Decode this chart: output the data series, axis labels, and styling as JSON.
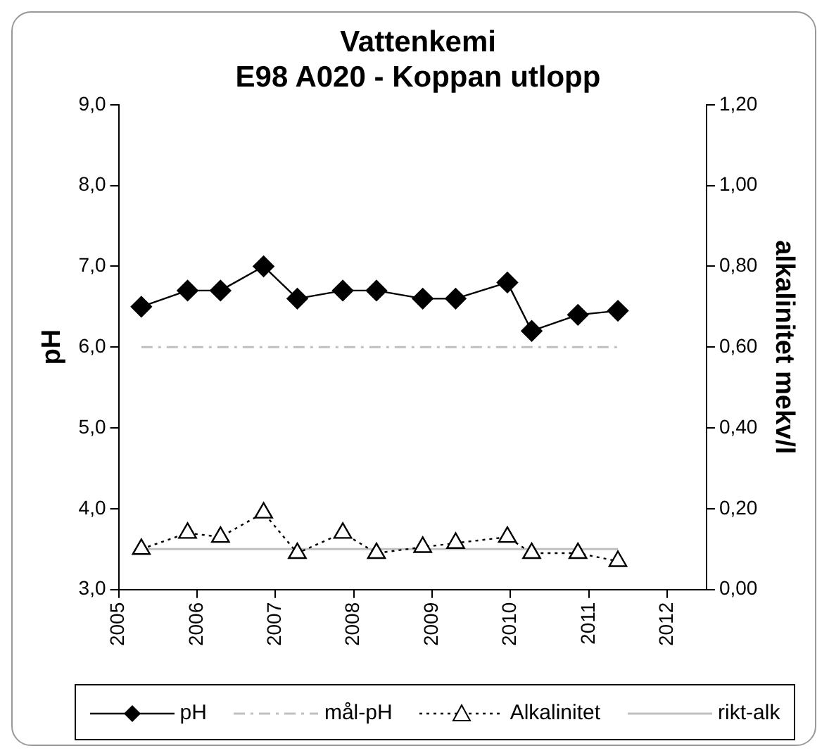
{
  "chart_data": {
    "type": "line",
    "title": "Vattenkemi",
    "subtitle": "E98 A020 - Koppan utlopp",
    "ylabel": "pH",
    "y2label": "alkalinitet mekv/l",
    "xlim": [
      2005,
      2012.5
    ],
    "xticks": [
      2005,
      2006,
      2007,
      2008,
      2009,
      2010,
      2011,
      2012
    ],
    "ylim": [
      3,
      9
    ],
    "yticks": [
      {
        "value": 3,
        "label": "3,0"
      },
      {
        "value": 4,
        "label": "4,0"
      },
      {
        "value": 5,
        "label": "5,0"
      },
      {
        "value": 6,
        "label": "6,0"
      },
      {
        "value": 7,
        "label": "7,0"
      },
      {
        "value": 8,
        "label": "8,0"
      },
      {
        "value": 9,
        "label": "9,0"
      }
    ],
    "y2lim": [
      0,
      1.2
    ],
    "y2ticks": [
      {
        "value": 0,
        "label": "0,00"
      },
      {
        "value": 0.2,
        "label": "0,20"
      },
      {
        "value": 0.4,
        "label": "0,40"
      },
      {
        "value": 0.6,
        "label": "0,60"
      },
      {
        "value": 0.8,
        "label": "0,80"
      },
      {
        "value": 1,
        "label": "1,00"
      },
      {
        "value": 1.2,
        "label": "1,20"
      }
    ],
    "grid": false,
    "legend": "bottom",
    "series": [
      {
        "name": "pH",
        "color": "#000000",
        "marker": "diamond",
        "line_style": "solid",
        "x": [
          2005.29,
          2005.88,
          2006.3,
          2006.85,
          2007.28,
          2007.86,
          2008.29,
          2008.88,
          2009.3,
          2009.96,
          2010.27,
          2010.86,
          2011.37
        ],
        "values": [
          6.5,
          6.7,
          6.7,
          7.0,
          6.6,
          6.7,
          6.7,
          6.6,
          6.6,
          6.8,
          6.2,
          6.4,
          6.45
        ]
      },
      {
        "name": "mål-pH",
        "color": "#c0c0c0",
        "marker": "none",
        "line_style": "dashdot",
        "x": [
          2005.29,
          2011.37
        ],
        "values": [
          6.0,
          6.0
        ]
      },
      {
        "name": "Alkalinitet",
        "color": "#000000",
        "marker": "triangle",
        "line_style": "dotted",
        "axis": "y2",
        "x": [
          2005.29,
          2005.88,
          2006.3,
          2006.85,
          2007.28,
          2007.86,
          2008.29,
          2008.88,
          2009.3,
          2009.96,
          2010.27,
          2010.86,
          2011.37
        ],
        "values": [
          0.1,
          0.14,
          0.13,
          0.19,
          0.09,
          0.14,
          0.09,
          0.105,
          0.115,
          0.13,
          0.09,
          0.09,
          0.07
        ]
      },
      {
        "name": "rikt-alk",
        "color": "#c0c0c0",
        "marker": "none",
        "line_style": "solid",
        "axis": "y2",
        "x": [
          2005.29,
          2011.37
        ],
        "values": [
          0.1,
          0.1
        ]
      }
    ]
  }
}
